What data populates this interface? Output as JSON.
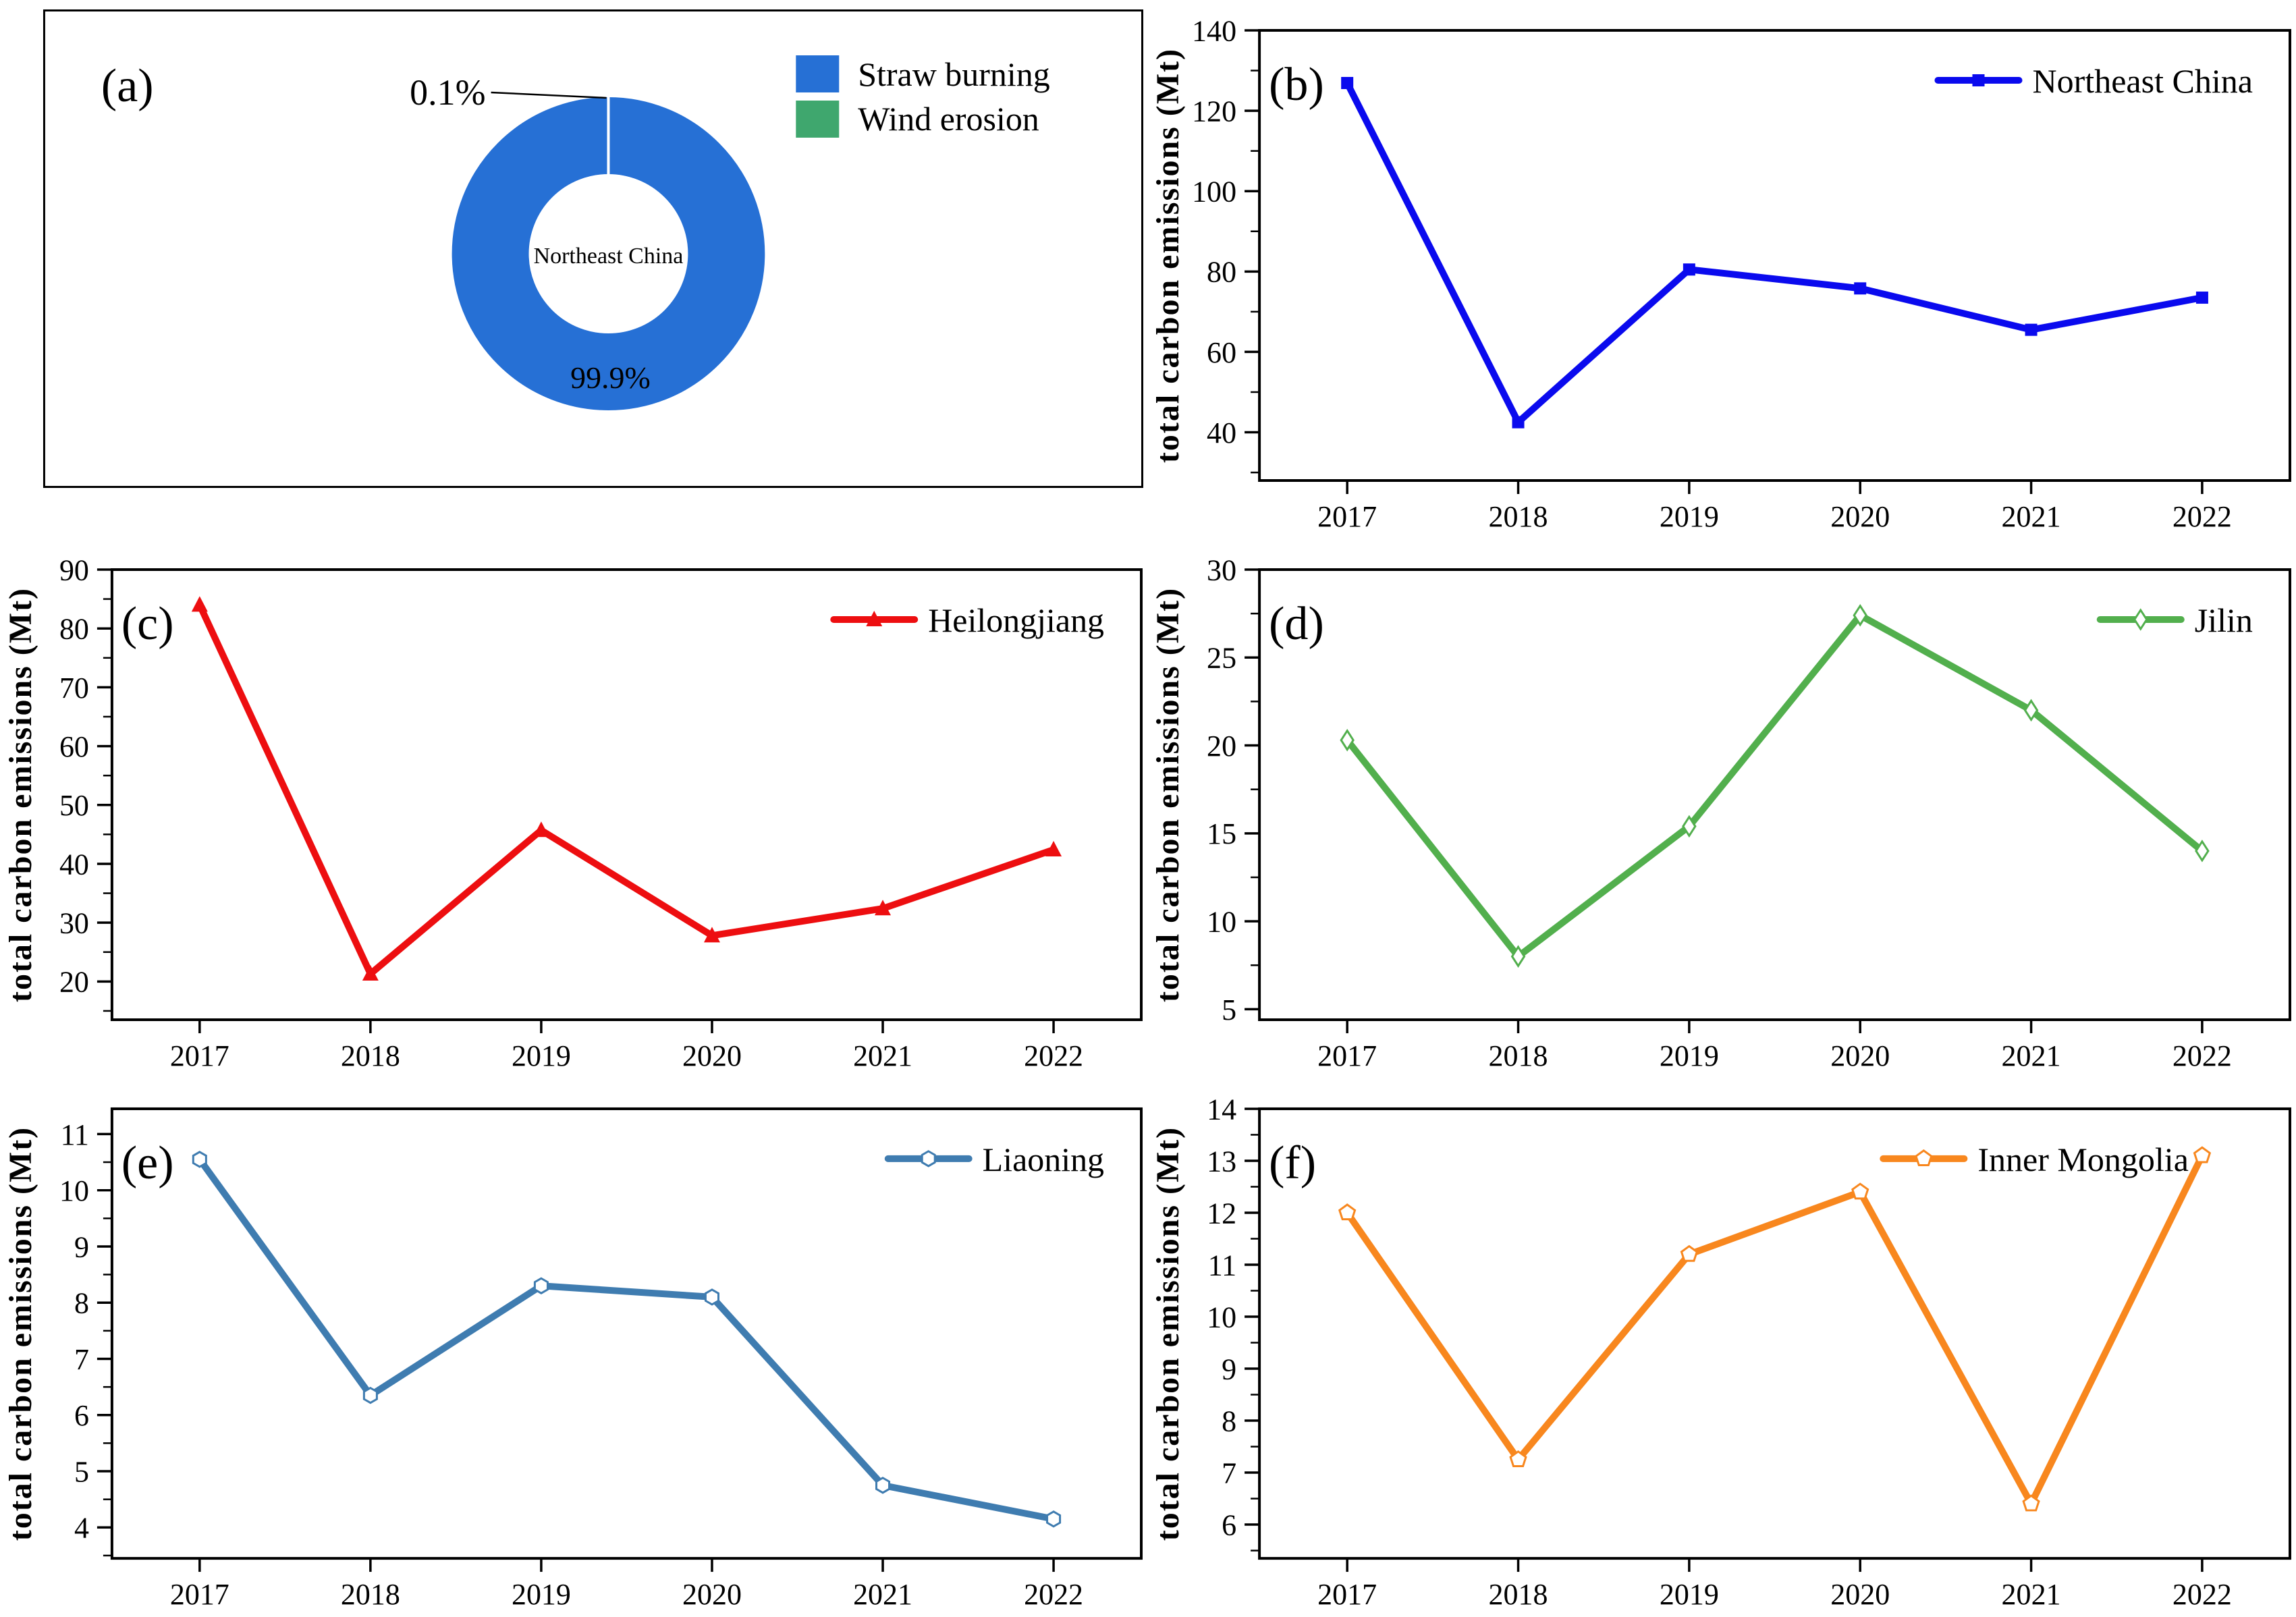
{
  "figure": {
    "background": "#ffffff",
    "rows": 3,
    "cols": 2,
    "panel_order": [
      "a",
      "b",
      "c",
      "d",
      "e",
      "f"
    ]
  },
  "chart_data": [
    {
      "panel": "a",
      "label": "(a)",
      "type": "pie",
      "donut": true,
      "slices": [
        {
          "name": "Straw burning",
          "value": 99.9,
          "pct_label": "99.9%",
          "color": "#2670d5"
        },
        {
          "name": "Wind erosion",
          "value": 0.1,
          "pct_label": "0.1%",
          "color": "#3fa76e"
        }
      ],
      "center_label": "Northeast China",
      "legend": {
        "position": "top-right",
        "items": [
          {
            "label": "Straw burning",
            "color": "#2670d5"
          },
          {
            "label": "Wind erosion",
            "color": "#3fa76e"
          }
        ]
      }
    },
    {
      "panel": "b",
      "label": "(b)",
      "type": "line",
      "x": [
        "2017",
        "2018",
        "2019",
        "2020",
        "2021",
        "2022"
      ],
      "series": [
        {
          "name": "Northeast China",
          "color": "#0a0aee",
          "marker": "filled-square",
          "values": [
            126.9,
            42.5,
            80.5,
            75.8,
            65.5,
            73.5
          ]
        }
      ],
      "xlabel": "",
      "ylabel": "total carbon emissions (Mt)",
      "ylim": [
        28,
        140
      ],
      "yticks": [
        40,
        60,
        80,
        100,
        120,
        140
      ],
      "yminor_step": 10,
      "grid": false,
      "legend_position": "top-right",
      "legend_inset": 55
    },
    {
      "panel": "c",
      "label": "(c)",
      "type": "line",
      "x": [
        "2017",
        "2018",
        "2019",
        "2020",
        "2021",
        "2022"
      ],
      "series": [
        {
          "name": "Heilongjiang",
          "color": "#ed0e10",
          "marker": "filled-triangle",
          "values": [
            84.0,
            21.3,
            45.7,
            27.8,
            32.4,
            42.4
          ]
        }
      ],
      "xlabel": "",
      "ylabel": "total carbon emissions (Mt)",
      "ylim": [
        13.5,
        90
      ],
      "yticks": [
        20,
        30,
        40,
        50,
        60,
        70,
        80,
        90
      ],
      "yminor_step": 5,
      "grid": false,
      "legend_position": "top-right",
      "legend_inset": 55
    },
    {
      "panel": "d",
      "label": "(d)",
      "type": "line",
      "x": [
        "2017",
        "2018",
        "2019",
        "2020",
        "2021",
        "2022"
      ],
      "series": [
        {
          "name": "Jilin",
          "color": "#52af4d",
          "marker": "open-diamond",
          "values": [
            20.3,
            8.0,
            15.4,
            27.4,
            22.0,
            14.0
          ]
        }
      ],
      "xlabel": "",
      "ylabel": "total carbon emissions (Mt)",
      "ylim": [
        4.4,
        30
      ],
      "yticks": [
        5,
        10,
        15,
        20,
        25,
        30
      ],
      "yminor_step": 2.5,
      "grid": false,
      "legend_position": "top-right",
      "legend_inset": 55
    },
    {
      "panel": "e",
      "label": "(e)",
      "type": "line",
      "x": [
        "2017",
        "2018",
        "2019",
        "2020",
        "2021",
        "2022"
      ],
      "series": [
        {
          "name": "Liaoning",
          "color": "#3f7cb0",
          "marker": "open-hexagon",
          "values": [
            10.55,
            6.35,
            8.3,
            8.1,
            4.75,
            4.15
          ]
        }
      ],
      "xlabel": "",
      "ylabel": "total carbon emissions (Mt)",
      "ylim": [
        3.45,
        11.45
      ],
      "yticks": [
        4,
        5,
        6,
        7,
        8,
        9,
        10,
        11
      ],
      "yminor_step": 0.5,
      "grid": false,
      "legend_position": "top-right",
      "legend_inset": 55
    },
    {
      "panel": "f",
      "label": "(f)",
      "type": "line",
      "x": [
        "2017",
        "2018",
        "2019",
        "2020",
        "2021",
        "2022"
      ],
      "series": [
        {
          "name": "Inner Mongolia",
          "color": "#f8871e",
          "marker": "open-pentagon",
          "values": [
            12.0,
            7.25,
            11.2,
            12.4,
            6.4,
            13.1
          ]
        }
      ],
      "xlabel": "",
      "ylabel": "total carbon emissions (Mt)",
      "ylim": [
        5.35,
        14
      ],
      "yticks": [
        6,
        7,
        8,
        9,
        10,
        11,
        12,
        13,
        14
      ],
      "yminor_step": 0.5,
      "grid": false,
      "legend_position": "top-right",
      "legend_inset": 150
    }
  ]
}
